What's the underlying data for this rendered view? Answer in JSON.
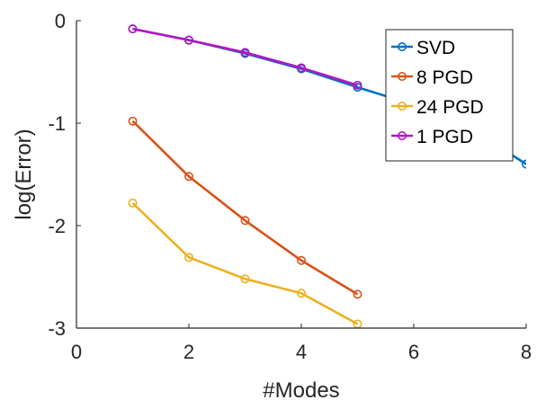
{
  "chart_data": {
    "type": "line",
    "xlabel": "#Modes",
    "ylabel": "log(Error)",
    "xlim": [
      0,
      8
    ],
    "ylim": [
      -3,
      0
    ],
    "xticks": [
      0,
      2,
      4,
      6,
      8
    ],
    "yticks": [
      0,
      -1,
      -2,
      -3
    ],
    "xtick_labels": [
      "0",
      "2",
      "4",
      "6",
      "8"
    ],
    "ytick_labels": [
      "0",
      "-1",
      "-2",
      "-3"
    ],
    "grid": false,
    "legend_position": "top-right",
    "series": [
      {
        "name": "SVD",
        "color": "#0072BD",
        "x": [
          1,
          2,
          3,
          4,
          5,
          6,
          7,
          8
        ],
        "y": [
          -0.08,
          -0.19,
          -0.32,
          -0.47,
          -0.65,
          -0.82,
          -1.05,
          -1.4
        ]
      },
      {
        "name": "8 PGD",
        "color": "#D95319",
        "x": [
          1,
          2,
          3,
          4,
          5
        ],
        "y": [
          -0.98,
          -1.52,
          -1.95,
          -2.34,
          -2.67
        ]
      },
      {
        "name": "24 PGD",
        "color": "#EDB120",
        "x": [
          1,
          2,
          3,
          4,
          5
        ],
        "y": [
          -1.78,
          -2.31,
          -2.52,
          -2.66,
          -2.96
        ]
      },
      {
        "name": "1 PGD",
        "color": "#B316C4",
        "x": [
          1,
          2,
          3,
          4,
          5
        ],
        "y": [
          -0.08,
          -0.19,
          -0.31,
          -0.46,
          -0.63
        ]
      }
    ]
  }
}
